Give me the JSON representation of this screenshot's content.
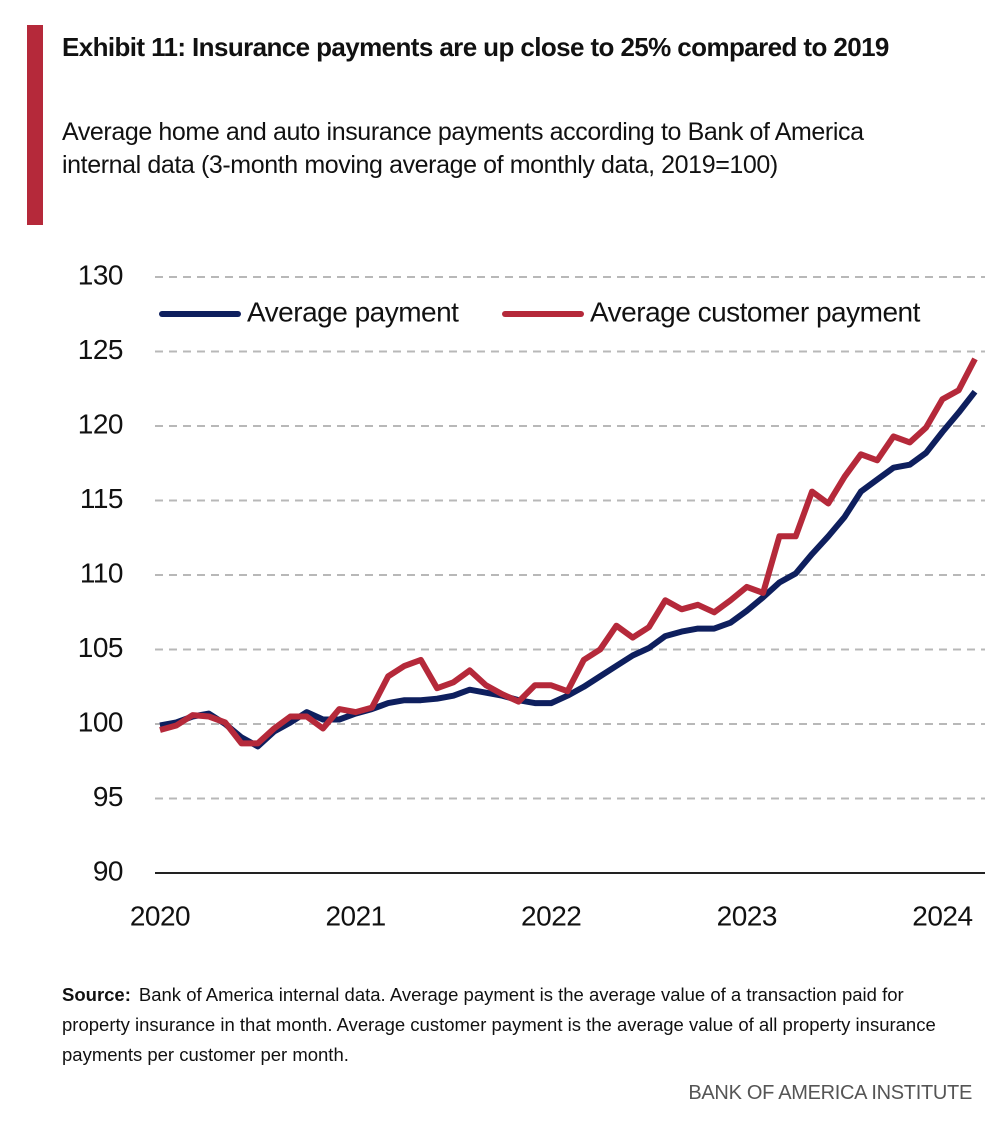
{
  "chart_data": {
    "type": "line",
    "title": "Exhibit 11: Insurance payments are up close to 25% compared to 2019",
    "subtitle": "Average home and auto insurance payments according to Bank of America internal data (3-month moving average of monthly data, 2019=100)",
    "categories": [
      "2020",
      null,
      null,
      null,
      null,
      null,
      null,
      null,
      null,
      null,
      null,
      null,
      "2021",
      null,
      null,
      null,
      null,
      null,
      null,
      null,
      null,
      null,
      null,
      null,
      "2022",
      null,
      null,
      null,
      null,
      null,
      null,
      null,
      null,
      null,
      null,
      null,
      "2023",
      null,
      null,
      null,
      null,
      null,
      null,
      null,
      null,
      null,
      null,
      null,
      "2024",
      null,
      null
    ],
    "series": [
      {
        "name": "Average payment",
        "color": "#0e1f5e",
        "values": [
          99.9,
          100.1,
          100.5,
          100.7,
          100.0,
          99.1,
          98.5,
          99.5,
          100.1,
          100.8,
          100.3,
          100.3,
          100.7,
          101.0,
          101.4,
          101.6,
          101.6,
          101.7,
          101.9,
          102.3,
          102.1,
          101.9,
          101.6,
          101.4,
          101.4,
          101.9,
          102.5,
          103.2,
          103.9,
          104.6,
          105.1,
          105.9,
          106.2,
          106.4,
          106.4,
          106.8,
          107.6,
          108.5,
          109.5,
          110.1,
          111.4,
          112.6,
          113.9,
          115.6,
          116.4,
          117.2,
          117.4,
          118.2,
          119.6,
          120.9,
          122.3
        ]
      },
      {
        "name": "Average customer payment",
        "color": "#b5293a",
        "values": [
          99.6,
          99.9,
          100.6,
          100.5,
          100.1,
          98.7,
          98.7,
          99.7,
          100.5,
          100.5,
          99.7,
          101.0,
          100.8,
          101.1,
          103.2,
          103.9,
          104.3,
          102.4,
          102.8,
          103.6,
          102.6,
          102.0,
          101.5,
          102.6,
          102.6,
          102.2,
          104.3,
          105.0,
          106.6,
          105.8,
          106.5,
          108.3,
          107.7,
          108.0,
          107.5,
          108.3,
          109.2,
          108.8,
          112.6,
          112.6,
          115.6,
          114.8,
          116.6,
          118.1,
          117.7,
          119.3,
          118.9,
          119.9,
          121.8,
          122.4,
          124.5
        ]
      }
    ],
    "ylim": [
      90,
      130
    ],
    "yticks": [
      90,
      95,
      100,
      105,
      110,
      115,
      120,
      125,
      130
    ],
    "grid": true,
    "legend": "top",
    "source_label": "Source:",
    "source_text": "Bank of America internal data. Average payment is the average value of a transaction paid for property insurance in that month.  Average customer payment is the average value of all property insurance payments per customer per month.",
    "footer": "BANK OF AMERICA INSTITUTE"
  }
}
